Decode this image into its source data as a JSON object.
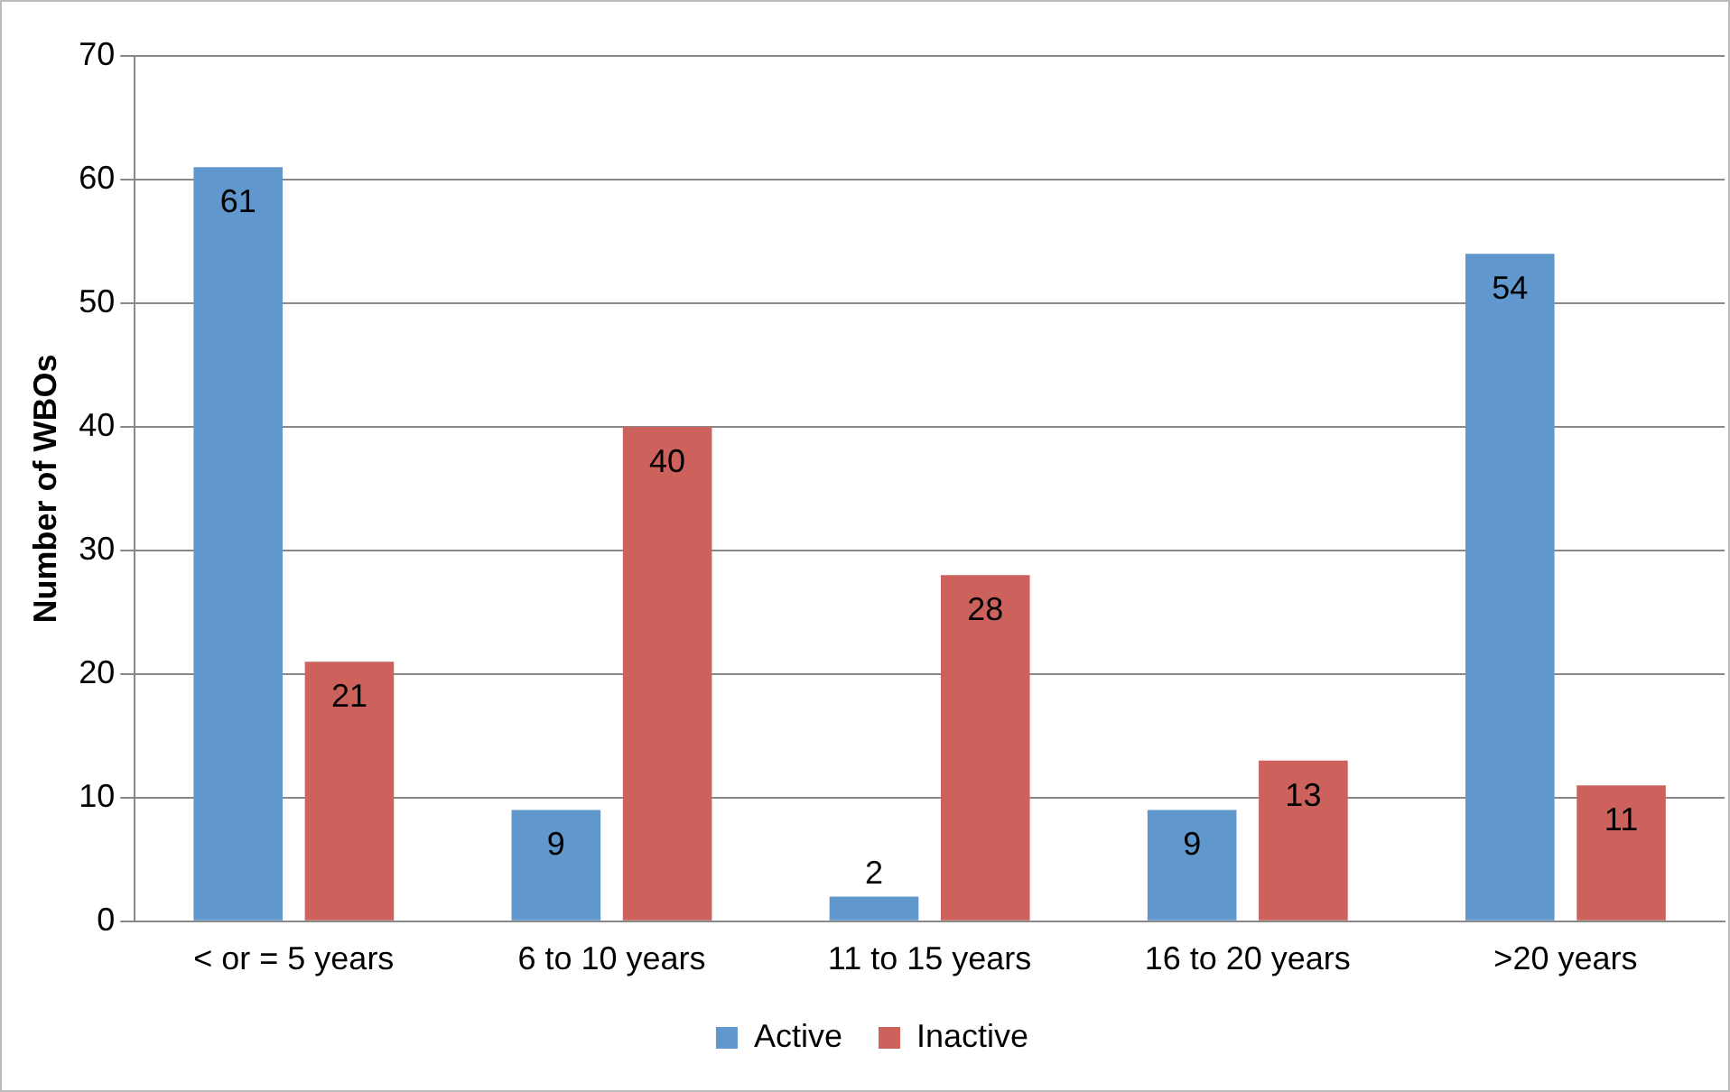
{
  "chart_data": {
    "type": "bar",
    "ylabel": "Number of WBOs",
    "categories": [
      "< or = 5 years",
      "6 to 10 years",
      "11 to 15 years",
      "16 to 20 years",
      ">20 years"
    ],
    "series": [
      {
        "name": "Active",
        "color": "#6097cc",
        "values": [
          61,
          9,
          2,
          9,
          54
        ]
      },
      {
        "name": "Inactive",
        "color": "#cd625c",
        "values": [
          21,
          40,
          28,
          13,
          11
        ]
      }
    ],
    "ylim": [
      0,
      70
    ],
    "yticks": [
      0,
      10,
      20,
      30,
      40,
      50,
      60,
      70
    ],
    "grid": "y",
    "legend": "bottom",
    "data_labels": true
  }
}
